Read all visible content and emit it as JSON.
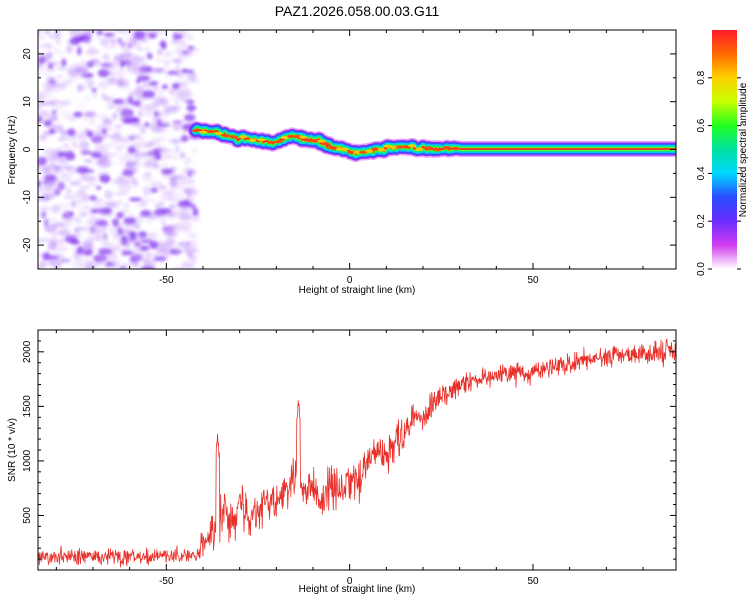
{
  "figure_title": "PAZ1.2026.058.00.03.G11",
  "colors": {
    "background": "#ffffff",
    "axis": "#000000",
    "snr_line": "#e8302a",
    "noise": "#8a3cf0",
    "ridge": "#ff1a2a"
  },
  "chart_data": [
    {
      "type": "heatmap",
      "name": "spectrogram",
      "title": "",
      "xlabel": "Height of straight line (km)",
      "ylabel": "Frequency (Hz)",
      "xlim": [
        -85,
        89
      ],
      "ylim": [
        -25,
        25
      ],
      "xticks": [
        -50,
        0,
        50
      ],
      "yticks": [
        -20,
        -10,
        0,
        10,
        20
      ],
      "grid": false,
      "noise_region": {
        "x_range": [
          -85,
          -42
        ],
        "description": "low-amplitude random noise"
      },
      "ridge": {
        "x": [
          -42,
          -37,
          -32,
          -26,
          -20,
          -16,
          -12,
          -8,
          -5,
          -2,
          2,
          6,
          10,
          14,
          18,
          24,
          30,
          40,
          50,
          60,
          70,
          80,
          89
        ],
        "y": [
          4,
          3.8,
          2.6,
          2,
          1.4,
          2.9,
          2.2,
          1.7,
          0.6,
          0,
          -0.6,
          -0.4,
          0.3,
          0.6,
          0.3,
          0.2,
          0.1,
          0.1,
          0.1,
          0.1,
          0.1,
          0.1,
          0.1
        ],
        "amplitude": [
          0.55,
          0.6,
          0.55,
          0.6,
          0.6,
          0.55,
          0.65,
          0.6,
          0.65,
          0.7,
          0.75,
          0.8,
          0.85,
          0.9,
          0.9,
          0.92,
          0.95,
          0.95,
          0.95,
          0.95,
          0.95,
          0.95,
          0.95
        ]
      },
      "colorbar": {
        "label": "Normalized spectral amplitude",
        "range": [
          0,
          1
        ],
        "ticks": [
          "0.0",
          "0.2",
          "0.4",
          "0.6",
          "0.8"
        ],
        "colormap": [
          "#ffffff",
          "#d23cf0",
          "#6a2cff",
          "#2a4cff",
          "#00d8ff",
          "#00e0a0",
          "#20ff20",
          "#c8ff00",
          "#ffd000",
          "#ff6a00",
          "#ff1a2a"
        ]
      }
    },
    {
      "type": "line",
      "name": "snr",
      "title": "",
      "xlabel": "Height of straight line (km)",
      "ylabel": "SNR (10 * v/v)",
      "xlim": [
        -85,
        89
      ],
      "ylim": [
        0,
        2200
      ],
      "xticks": [
        -50,
        0,
        50
      ],
      "yticks": [
        500,
        1000,
        1500,
        2000
      ],
      "grid": false,
      "series": [
        {
          "name": "SNR",
          "x": [
            -85,
            -80,
            -75,
            -70,
            -65,
            -60,
            -55,
            -50,
            -45,
            -42,
            -40,
            -37,
            -35,
            -32,
            -30,
            -27,
            -25,
            -22,
            -20,
            -17,
            -15,
            -13,
            -10,
            -7,
            -5,
            -2,
            0,
            3,
            5,
            8,
            10,
            13,
            15,
            18,
            20,
            23,
            25,
            28,
            30,
            35,
            40,
            45,
            50,
            55,
            60,
            65,
            70,
            75,
            80,
            85,
            89
          ],
          "values": [
            130,
            120,
            125,
            120,
            130,
            125,
            120,
            125,
            130,
            135,
            260,
            330,
            500,
            420,
            600,
            480,
            560,
            650,
            600,
            720,
            850,
            700,
            750,
            650,
            800,
            700,
            850,
            850,
            1000,
            1100,
            1000,
            1200,
            1250,
            1450,
            1400,
            1550,
            1600,
            1650,
            1700,
            1750,
            1780,
            1800,
            1820,
            1850,
            1900,
            1920,
            1950,
            1960,
            1980,
            2000,
            2020
          ],
          "noise_amplitude": [
            90,
            90,
            90,
            90,
            90,
            90,
            90,
            90,
            90,
            90,
            200,
            250,
            250,
            250,
            250,
            250,
            230,
            230,
            230,
            230,
            230,
            230,
            230,
            230,
            230,
            230,
            220,
            220,
            220,
            220,
            220,
            220,
            200,
            200,
            180,
            160,
            150,
            140,
            130,
            120,
            120,
            120,
            120,
            120,
            120,
            120,
            120,
            120,
            130,
            130,
            130
          ],
          "spikes": [
            {
              "x": -36,
              "y": 1220
            },
            {
              "x": -14,
              "y": 1550
            }
          ]
        }
      ]
    }
  ]
}
